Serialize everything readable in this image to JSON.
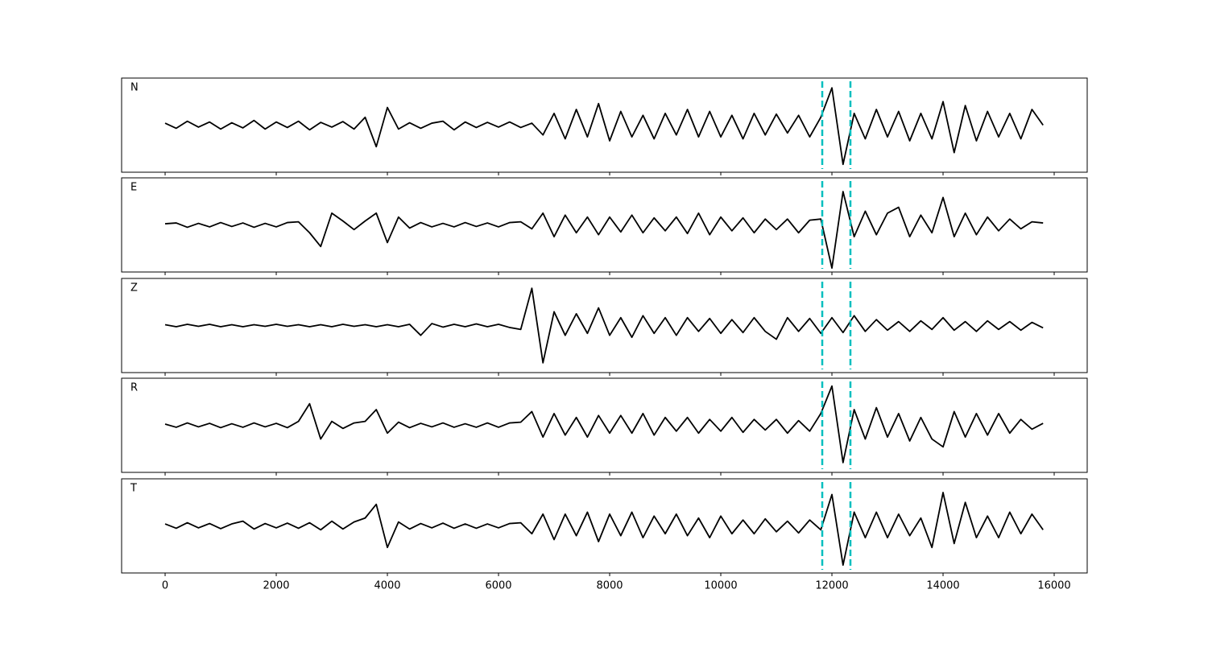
{
  "chart_data": {
    "type": "line",
    "layout": "stacked-panels",
    "x": [
      0,
      200,
      400,
      600,
      800,
      1000,
      1200,
      1400,
      1600,
      1800,
      2000,
      2200,
      2400,
      2600,
      2800,
      3000,
      3200,
      3400,
      3600,
      3800,
      4000,
      4200,
      4400,
      4600,
      4800,
      5000,
      5200,
      5400,
      5600,
      5800,
      6000,
      6200,
      6400,
      6600,
      6800,
      7000,
      7200,
      7400,
      7600,
      7800,
      8000,
      8200,
      8400,
      8600,
      8800,
      9000,
      9200,
      9400,
      9600,
      9800,
      10000,
      10200,
      10400,
      10600,
      10800,
      11000,
      11200,
      11400,
      11600,
      11800,
      12000,
      12200,
      12400,
      12600,
      12800,
      13000,
      13200,
      13400,
      13600,
      13800,
      14000,
      14200,
      14400,
      14600,
      14800,
      15000,
      15200,
      15400,
      15600,
      15800
    ],
    "series": [
      {
        "name": "N",
        "color": "#000000",
        "values": [
          0.05,
          -0.08,
          0.1,
          -0.05,
          0.08,
          -0.1,
          0.06,
          -0.07,
          0.12,
          -0.1,
          0.08,
          -0.06,
          0.1,
          -0.12,
          0.07,
          -0.05,
          0.09,
          -0.1,
          0.2,
          -0.55,
          0.45,
          -0.1,
          0.06,
          -0.08,
          0.05,
          0.1,
          -0.12,
          0.08,
          -0.06,
          0.07,
          -0.05,
          0.08,
          -0.06,
          0.05,
          -0.25,
          0.3,
          -0.35,
          0.4,
          -0.3,
          0.55,
          -0.4,
          0.35,
          -0.3,
          0.25,
          -0.35,
          0.3,
          -0.25,
          0.4,
          -0.3,
          0.35,
          -0.3,
          0.25,
          -0.35,
          0.3,
          -0.25,
          0.28,
          -0.2,
          0.25,
          -0.3,
          0.2,
          0.95,
          -1.0,
          0.3,
          -0.35,
          0.4,
          -0.3,
          0.35,
          -0.4,
          0.3,
          -0.35,
          0.6,
          -0.7,
          0.5,
          -0.4,
          0.35,
          -0.3,
          0.3,
          -0.35,
          0.4,
          0.0
        ]
      },
      {
        "name": "E",
        "color": "#000000",
        "values": [
          0.03,
          0.05,
          -0.06,
          0.04,
          -0.05,
          0.06,
          -0.04,
          0.05,
          -0.06,
          0.04,
          -0.05,
          0.06,
          0.08,
          -0.2,
          -0.55,
          0.3,
          0.1,
          -0.12,
          0.1,
          0.3,
          -0.45,
          0.2,
          -0.08,
          0.06,
          -0.05,
          0.04,
          -0.05,
          0.06,
          -0.04,
          0.05,
          -0.05,
          0.06,
          0.08,
          -0.1,
          0.3,
          -0.3,
          0.25,
          -0.2,
          0.2,
          -0.25,
          0.2,
          -0.18,
          0.25,
          -0.2,
          0.18,
          -0.15,
          0.2,
          -0.22,
          0.3,
          -0.25,
          0.2,
          -0.15,
          0.18,
          -0.2,
          0.15,
          -0.12,
          0.15,
          -0.2,
          0.12,
          0.15,
          -1.1,
          0.85,
          -0.3,
          0.35,
          -0.25,
          0.3,
          0.45,
          -0.3,
          0.25,
          -0.2,
          0.7,
          -0.3,
          0.3,
          -0.25,
          0.2,
          -0.15,
          0.15,
          -0.1,
          0.08,
          0.05
        ]
      },
      {
        "name": "Z",
        "color": "#000000",
        "values": [
          0.02,
          -0.03,
          0.03,
          -0.02,
          0.03,
          -0.03,
          0.02,
          -0.03,
          0.02,
          -0.02,
          0.03,
          -0.02,
          0.02,
          -0.03,
          0.02,
          -0.03,
          0.03,
          -0.02,
          0.02,
          -0.03,
          0.02,
          -0.03,
          0.03,
          -0.25,
          0.05,
          -0.04,
          0.03,
          -0.03,
          0.04,
          -0.03,
          0.03,
          -0.05,
          -0.1,
          0.95,
          -0.95,
          0.35,
          -0.25,
          0.3,
          -0.2,
          0.45,
          -0.25,
          0.2,
          -0.3,
          0.25,
          -0.2,
          0.2,
          -0.25,
          0.2,
          -0.15,
          0.18,
          -0.2,
          0.15,
          -0.18,
          0.2,
          -0.15,
          -0.35,
          0.2,
          -0.15,
          0.18,
          -0.2,
          0.2,
          -0.18,
          0.25,
          -0.15,
          0.15,
          -0.12,
          0.1,
          -0.15,
          0.12,
          -0.1,
          0.2,
          -0.12,
          0.1,
          -0.15,
          0.12,
          -0.1,
          0.1,
          -0.12,
          0.08,
          -0.06
        ]
      },
      {
        "name": "R",
        "color": "#000000",
        "values": [
          0.03,
          -0.05,
          0.06,
          -0.04,
          0.05,
          -0.06,
          0.04,
          -0.05,
          0.06,
          -0.04,
          0.05,
          -0.06,
          0.1,
          0.55,
          -0.35,
          0.1,
          -0.08,
          0.06,
          0.1,
          0.4,
          -0.2,
          0.08,
          -0.06,
          0.05,
          -0.04,
          0.06,
          -0.05,
          0.04,
          -0.05,
          0.06,
          -0.05,
          0.06,
          0.08,
          0.35,
          -0.3,
          0.3,
          -0.25,
          0.2,
          -0.3,
          0.25,
          -0.2,
          0.25,
          -0.2,
          0.3,
          -0.25,
          0.2,
          -0.15,
          0.2,
          -0.2,
          0.15,
          -0.15,
          0.2,
          -0.18,
          0.15,
          -0.12,
          0.15,
          -0.2,
          0.12,
          -0.15,
          0.3,
          1.0,
          -0.95,
          0.4,
          -0.35,
          0.45,
          -0.3,
          0.3,
          -0.4,
          0.2,
          -0.35,
          -0.55,
          0.35,
          -0.3,
          0.3,
          -0.25,
          0.3,
          -0.2,
          0.15,
          -0.1,
          0.05
        ]
      },
      {
        "name": "T",
        "color": "#000000",
        "values": [
          0.05,
          -0.06,
          0.08,
          -0.05,
          0.06,
          -0.07,
          0.05,
          0.12,
          -0.08,
          0.06,
          -0.05,
          0.07,
          -0.06,
          0.08,
          -0.1,
          0.12,
          -0.08,
          0.1,
          0.2,
          0.55,
          -0.55,
          0.1,
          -0.08,
          0.06,
          -0.05,
          0.07,
          -0.06,
          0.05,
          -0.06,
          0.05,
          -0.05,
          0.06,
          0.08,
          -0.2,
          0.3,
          -0.35,
          0.3,
          -0.25,
          0.35,
          -0.4,
          0.3,
          -0.25,
          0.35,
          -0.3,
          0.25,
          -0.2,
          0.3,
          -0.25,
          0.2,
          -0.3,
          0.25,
          -0.2,
          0.15,
          -0.2,
          0.18,
          -0.15,
          0.12,
          -0.18,
          0.15,
          -0.1,
          0.8,
          -1.0,
          0.35,
          -0.3,
          0.35,
          -0.3,
          0.3,
          -0.25,
          0.2,
          -0.55,
          0.85,
          -0.45,
          0.6,
          -0.3,
          0.25,
          -0.3,
          0.35,
          -0.2,
          0.3,
          -0.1
        ]
      }
    ],
    "xlim": [
      -783,
      16594
    ],
    "xticks": [
      0,
      2000,
      4000,
      6000,
      8000,
      10000,
      12000,
      14000,
      16000
    ],
    "ylim": [
      -1.2,
      1.2
    ],
    "vlines": [
      11826,
      12333
    ],
    "vline_color": "#00bfbf",
    "vline_style": "dashed"
  }
}
